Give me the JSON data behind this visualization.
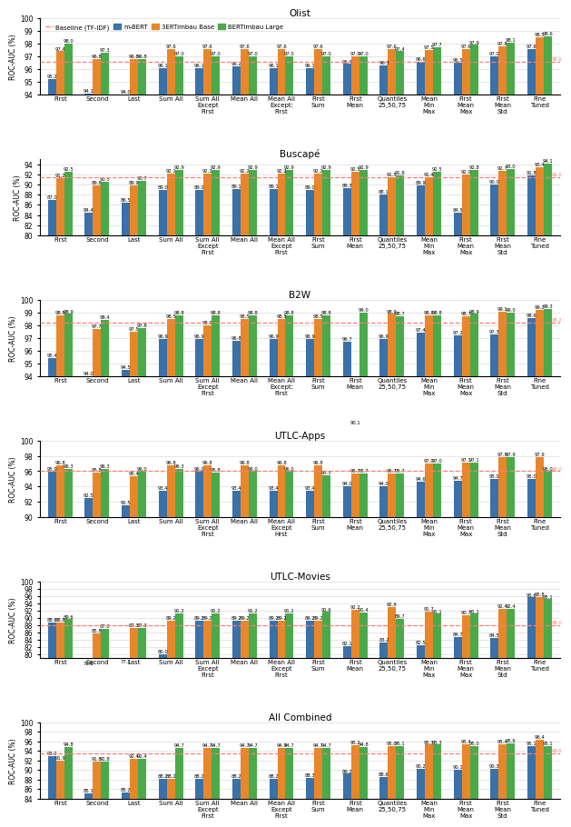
{
  "datasets": [
    {
      "title": "Olist",
      "ylim": [
        94,
        100
      ],
      "yticks": [
        94,
        95,
        96,
        97,
        98,
        99,
        100
      ],
      "baseline": 96.6,
      "categories": [
        "First",
        "Second",
        "Last",
        "Sum All",
        "Sum All\nExcept\nFirst",
        "Mean All",
        "Mean All\nExcept:\nFirst",
        "First\nSum",
        "First\nMean",
        "Quantiles\n25,50,75",
        "Mean\nMin\nMax",
        "First\nMean\nMax",
        "First\nMean\nStd",
        "Fine\nTuned"
      ],
      "mbert": [
        95.2,
        94.1,
        94.0,
        96.1,
        96.1,
        96.2,
        96.1,
        96.1,
        96.4,
        96.3,
        96.6,
        96.5,
        97.0,
        97.6
      ],
      "base": [
        97.4,
        96.8,
        96.8,
        97.6,
        97.6,
        97.6,
        97.6,
        97.6,
        97.0,
        97.6,
        97.5,
        97.6,
        97.8,
        98.5
      ],
      "large": [
        98.0,
        97.3,
        96.8,
        97.0,
        97.0,
        97.0,
        97.0,
        97.0,
        97.0,
        97.4,
        97.7,
        97.9,
        98.1,
        98.6
      ]
    },
    {
      "title": "Buscapé",
      "ylim": [
        80,
        95
      ],
      "yticks": [
        80,
        82,
        84,
        86,
        88,
        90,
        92,
        94
      ],
      "baseline": 91.5,
      "categories": [
        "First",
        "Second",
        "Last",
        "Sum All",
        "Sum All\nExcept\nFirst",
        "Mean All",
        "Mean All\nExcept\nFirst",
        "First\nSum",
        "First\nMean",
        "Quantiles\n25,50,75",
        "Mean\nMin\nMax",
        "First\nMean\nMax",
        "First\nMean\nStd",
        "Fine\nTuned"
      ],
      "mbert": [
        87.0,
        84.4,
        86.5,
        89.0,
        89.0,
        89.1,
        89.1,
        89.0,
        89.3,
        88.1,
        89.9,
        84.5,
        90.0,
        91.8
      ],
      "base": [
        91.2,
        89.8,
        89.9,
        92.1,
        92.2,
        92.2,
        92.2,
        92.2,
        92.5,
        91.5,
        91.4,
        92.0,
        92.7,
        93.4
      ],
      "large": [
        92.5,
        90.5,
        90.7,
        92.9,
        92.9,
        92.9,
        92.9,
        92.9,
        92.9,
        91.8,
        92.5,
        92.8,
        93.0,
        94.1
      ]
    },
    {
      "title": "B2W",
      "ylim": [
        94,
        100
      ],
      "yticks": [
        94,
        95,
        96,
        97,
        98,
        99,
        100
      ],
      "baseline": 98.2,
      "categories": [
        "First",
        "Second",
        "Last",
        "Sum All",
        "Sum All\nExcept\nFirst",
        "Mean All",
        "Mean All\nExcept:\nFirst",
        "First\nSum",
        "First\nMean",
        "Quantiles\n25,50,75",
        "Mean\nMin\nMax",
        "First\nMean\nMax",
        "First\nMean\nStd",
        "Fine\nTuned"
      ],
      "mbert": [
        95.4,
        94.0,
        94.5,
        96.9,
        96.9,
        96.8,
        96.9,
        96.9,
        96.7,
        96.9,
        97.4,
        97.2,
        97.3,
        98.6
      ],
      "base": [
        98.8,
        97.7,
        97.5,
        98.5,
        98.0,
        98.5,
        98.5,
        98.5,
        90.1,
        98.9,
        98.8,
        98.7,
        99.1,
        99.2
      ],
      "large": [
        98.9,
        98.4,
        97.8,
        98.8,
        98.8,
        98.8,
        98.8,
        98.8,
        99.0,
        98.7,
        98.8,
        98.9,
        99.0,
        99.3
      ]
    },
    {
      "title": "UTLC-Apps",
      "ylim": [
        90,
        100
      ],
      "yticks": [
        90,
        92,
        94,
        96,
        98,
        100
      ],
      "baseline": 96.0,
      "categories": [
        "First",
        "Second",
        "Last",
        "Sum All",
        "Sum All\nExcept\nFirst",
        "Mean All",
        "Mean All\nExcept\nHrst",
        "First\nSum",
        "First\nMean",
        "Quantiles\n25,50,75",
        "Mean\nMin\nMax",
        "First\nMean\nMax",
        "First\nMean\nStd",
        "Fine\nTuned"
      ],
      "mbert": [
        95.9,
        92.5,
        91.5,
        93.4,
        96.0,
        93.4,
        93.4,
        93.4,
        94.0,
        94.0,
        94.6,
        94.7,
        95.0,
        95.0
      ],
      "base": [
        96.8,
        95.8,
        95.4,
        96.8,
        96.8,
        96.8,
        96.8,
        96.8,
        95.7,
        95.7,
        97.0,
        97.1,
        97.9,
        97.9
      ],
      "large": [
        96.3,
        96.3,
        96.0,
        96.3,
        95.8,
        96.0,
        96.0,
        95.5,
        95.7,
        95.7,
        97.0,
        97.1,
        97.9,
        96.0
      ]
    },
    {
      "title": "UTLC-Movies",
      "ylim": [
        79,
        100
      ],
      "yticks": [
        80,
        82,
        84,
        86,
        88,
        90,
        92,
        94,
        96,
        98,
        100
      ],
      "baseline": 88.0,
      "categories": [
        "First",
        "Second",
        "Last",
        "Sum All",
        "Sum All\nExcept\nFirst",
        "Mean All",
        "Mean All\nExcept\nFirst",
        "First\nSum",
        "First\nMean",
        "Quantiles\n25,50,75",
        "Mean\nMin\nMax",
        "First\nMean\nMax",
        "First\nMean\nStd",
        "Fine\nTuned"
      ],
      "mbert": [
        88.6,
        76.8,
        77.3,
        80.0,
        89.2,
        89.2,
        89.2,
        89.2,
        82.1,
        83.2,
        82.5,
        84.7,
        84.5,
        95.6
      ],
      "base": [
        88.8,
        85.8,
        87.3,
        89.2,
        89.2,
        89.2,
        89.2,
        89.2,
        92.2,
        92.9,
        91.7,
        90.7,
        92.4,
        95.8
      ],
      "large": [
        89.6,
        87.0,
        87.3,
        91.2,
        91.2,
        91.2,
        91.2,
        91.6,
        91.4,
        89.7,
        91.1,
        91.1,
        92.4,
        95.1
      ]
    },
    {
      "title": "All Combined",
      "ylim": [
        84,
        100
      ],
      "yticks": [
        84,
        86,
        88,
        90,
        92,
        94,
        96,
        98,
        100
      ],
      "baseline": 93.5,
      "categories": [
        "First",
        "Second",
        "Last",
        "Sum All",
        "Sum All\nExcept\nFirst",
        "Mean All",
        "Mean All\nExcept\nFirst",
        "First\nSum",
        "First\nMean",
        "Quantiles\n25,50,75",
        "Mean\nMin\nMax",
        "First\nMean\nMax",
        "First\nMean\nStd",
        "Fine\nTuned"
      ],
      "mbert": [
        93.0,
        85.1,
        85.2,
        88.2,
        88.2,
        88.2,
        88.2,
        88.3,
        89.2,
        88.6,
        90.2,
        90.1,
        90.3,
        95.1
      ],
      "base": [
        91.9,
        91.8,
        92.4,
        88.2,
        94.7,
        94.7,
        94.7,
        94.7,
        95.2,
        95.0,
        95.3,
        95.4,
        95.4,
        96.4
      ],
      "large": [
        94.8,
        91.8,
        92.4,
        94.7,
        94.7,
        94.7,
        94.7,
        94.7,
        94.8,
        95.1,
        95.3,
        95.0,
        95.6,
        95.1
      ]
    }
  ],
  "colors": {
    "mbert": "#3a71a8",
    "base": "#e8872a",
    "large": "#4aaa4a"
  },
  "bar_width": 0.22,
  "ylabel": "ROC-AUC (%)"
}
